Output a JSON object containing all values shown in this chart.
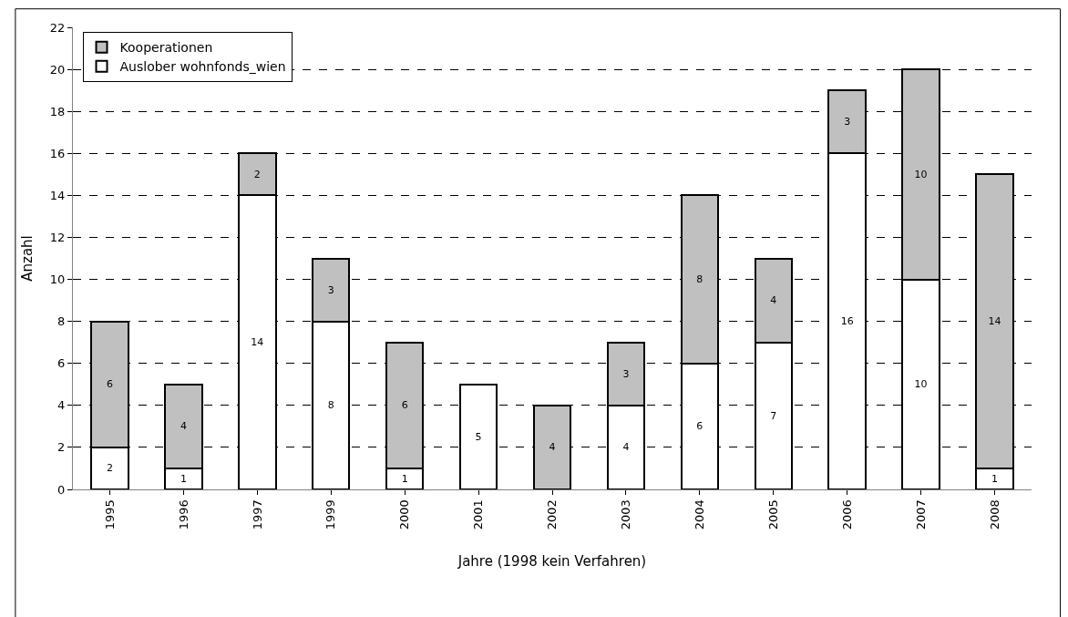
{
  "chart_data": {
    "type": "bar",
    "stacked": true,
    "xlabel": "Jahre (1998 kein Verfahren)",
    "ylabel": "Anzahl",
    "categories": [
      "1995",
      "1996",
      "1997",
      "1999",
      "2000",
      "2001",
      "2002",
      "2003",
      "2004",
      "2005",
      "2006",
      "2007",
      "2008"
    ],
    "series": [
      {
        "name": "Auslober wohnfonds_wien",
        "color": "#ffffff",
        "values": [
          2,
          1,
          14,
          8,
          1,
          5,
          0,
          4,
          6,
          7,
          16,
          10,
          1
        ],
        "value_labels": [
          "2",
          "1",
          "14",
          "8",
          "1",
          "5",
          null,
          "4",
          "6",
          "7",
          "16",
          "10",
          "1"
        ]
      },
      {
        "name": "Kooperationen",
        "color": "#c0c0c0",
        "values": [
          6,
          4,
          2,
          3,
          6,
          0,
          4,
          3,
          8,
          4,
          3,
          10,
          14
        ],
        "value_labels": [
          "6",
          "4",
          "2",
          "3",
          "6",
          null,
          "4",
          "3",
          "8",
          "4",
          "3",
          "10",
          "14"
        ]
      }
    ],
    "ylim": [
      0,
      22
    ],
    "yticks": [
      0,
      2,
      4,
      6,
      8,
      10,
      12,
      14,
      16,
      18,
      20,
      22
    ],
    "grid": "y",
    "line_style": "dashed",
    "legend": "top left"
  }
}
